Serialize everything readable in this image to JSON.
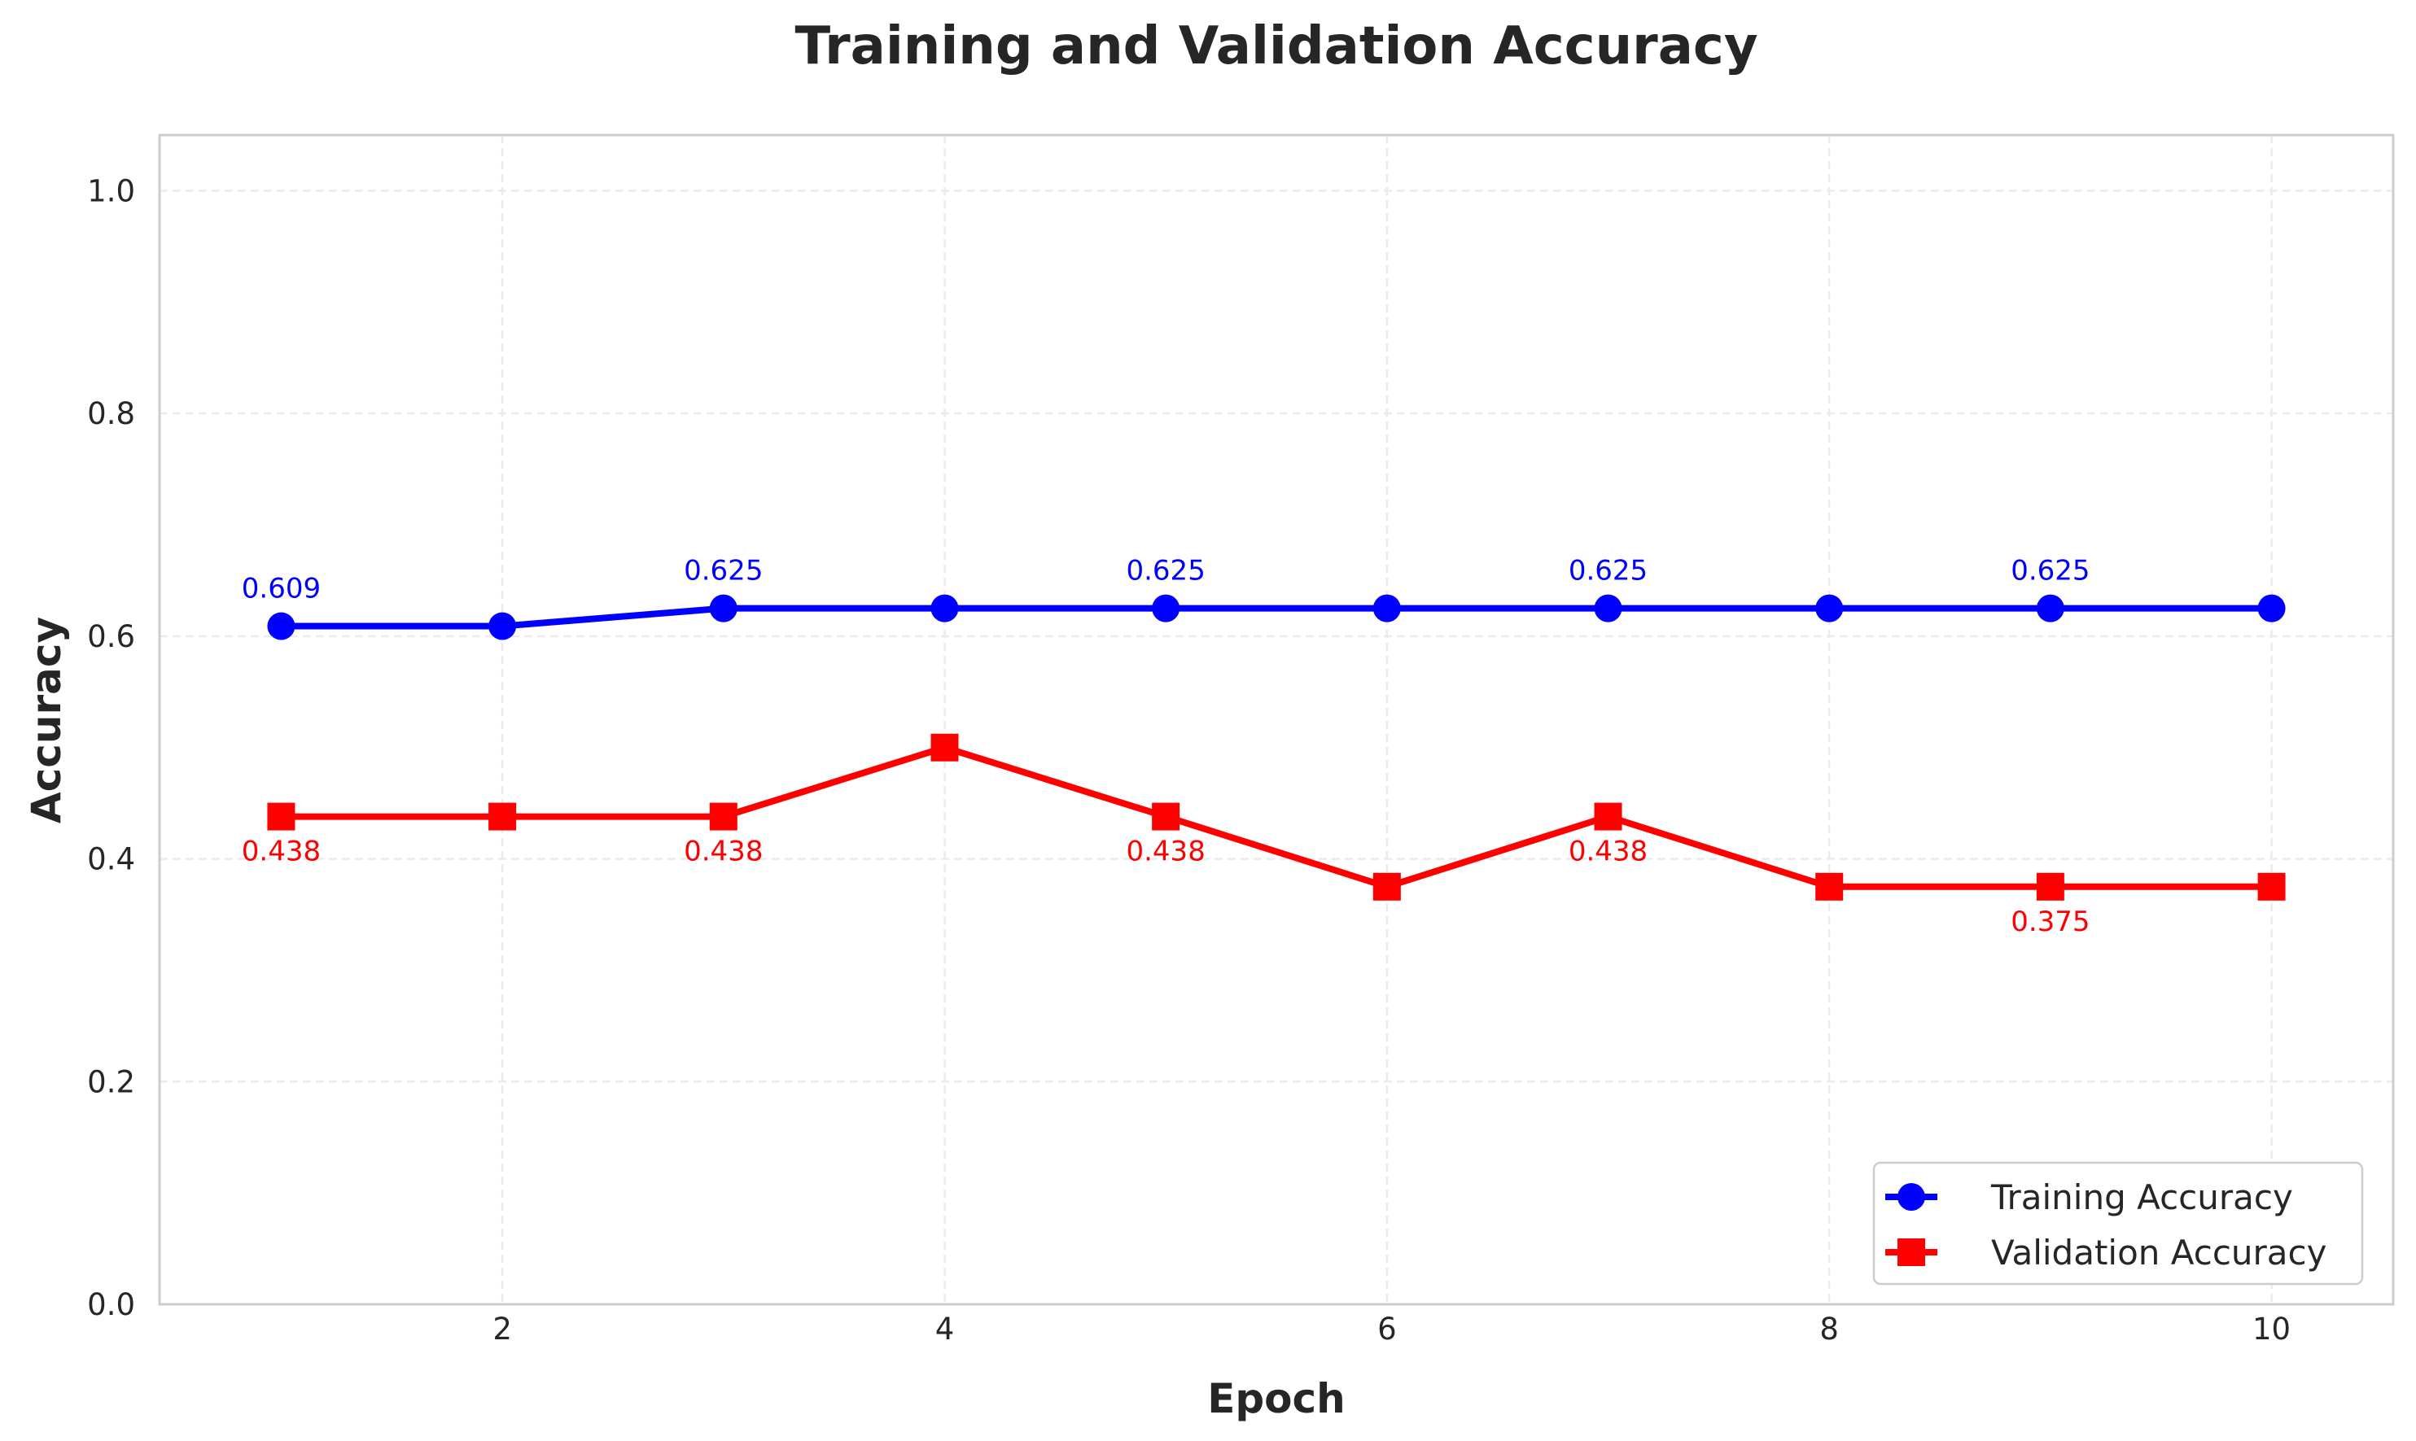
{
  "chart_data": {
    "type": "line",
    "title": "Training and Validation Accuracy",
    "xlabel": "Epoch",
    "ylabel": "Accuracy",
    "x": [
      1,
      2,
      3,
      4,
      5,
      6,
      7,
      8,
      9,
      10
    ],
    "xlim": [
      0.45,
      10.55
    ],
    "ylim": [
      0.0,
      1.05
    ],
    "xticks": [
      2,
      4,
      6,
      8,
      10
    ],
    "yticks": [
      0.0,
      0.2,
      0.4,
      0.6,
      0.8,
      1.0
    ],
    "xtick_labels": [
      "2",
      "4",
      "6",
      "8",
      "10"
    ],
    "ytick_labels": [
      "0.0",
      "0.2",
      "0.4",
      "0.6",
      "0.8",
      "1.0"
    ],
    "grid": true,
    "legend_position": "lower-right",
    "series": [
      {
        "name": "Training Accuracy",
        "color": "#0000ff",
        "marker": "circle",
        "values": [
          0.609,
          0.609,
          0.625,
          0.625,
          0.625,
          0.625,
          0.625,
          0.625,
          0.625,
          0.625
        ],
        "annotations": [
          {
            "x": 1,
            "text": "0.609"
          },
          {
            "x": 3,
            "text": "0.625"
          },
          {
            "x": 5,
            "text": "0.625"
          },
          {
            "x": 7,
            "text": "0.625"
          },
          {
            "x": 9,
            "text": "0.625"
          }
        ],
        "annotation_side": "above"
      },
      {
        "name": "Validation Accuracy",
        "color": "#ff0000",
        "marker": "square",
        "values": [
          0.438,
          0.438,
          0.438,
          0.5,
          0.438,
          0.375,
          0.438,
          0.375,
          0.375,
          0.375
        ],
        "annotations": [
          {
            "x": 1,
            "text": "0.438"
          },
          {
            "x": 3,
            "text": "0.438"
          },
          {
            "x": 5,
            "text": "0.438"
          },
          {
            "x": 7,
            "text": "0.438"
          },
          {
            "x": 9,
            "text": "0.375"
          }
        ],
        "annotation_side": "below"
      }
    ]
  }
}
